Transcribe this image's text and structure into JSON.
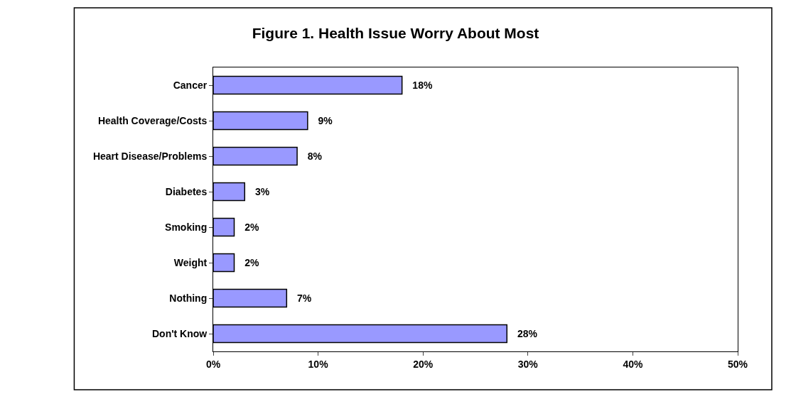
{
  "chart_data": {
    "type": "bar",
    "orientation": "horizontal",
    "title": "Figure 1. Health Issue Worry About Most",
    "categories": [
      "Cancer",
      "Health Coverage/Costs",
      "Heart Disease/Problems",
      "Diabetes",
      "Smoking",
      "Weight",
      "Nothing",
      "Don't Know"
    ],
    "values": [
      18,
      9,
      8,
      3,
      2,
      2,
      7,
      28
    ],
    "value_labels": [
      "18%",
      "9%",
      "8%",
      "3%",
      "2%",
      "2%",
      "7%",
      "28%"
    ],
    "color": "#9999ff",
    "xlim": [
      0,
      50
    ],
    "xticks": [
      {
        "value": 0,
        "label": "0%"
      },
      {
        "value": 10,
        "label": "10%"
      },
      {
        "value": 20,
        "label": "20%"
      },
      {
        "value": 30,
        "label": "30%"
      },
      {
        "value": 40,
        "label": "40%"
      },
      {
        "value": 50,
        "label": "50%"
      }
    ],
    "legend": false
  }
}
